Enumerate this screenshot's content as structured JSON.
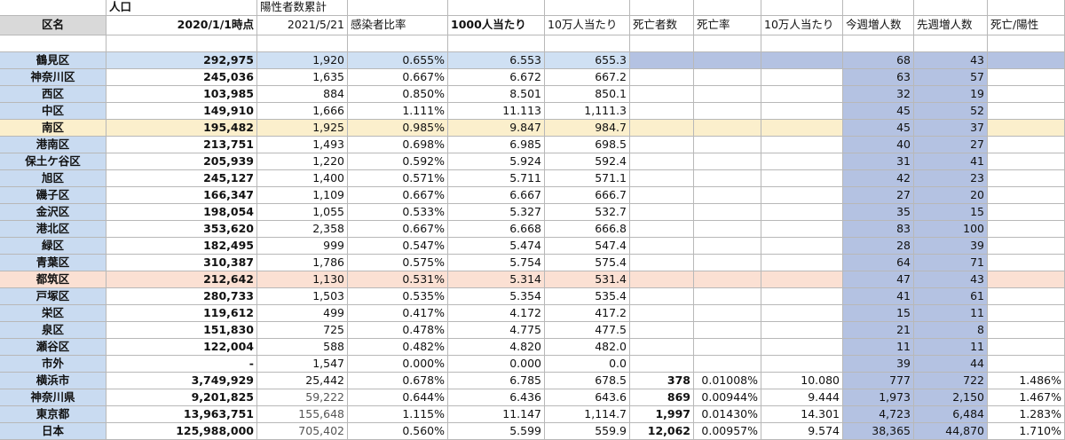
{
  "header": {
    "top": [
      "",
      "人口",
      "陽性者数累計",
      "",
      "",
      "",
      "",
      "",
      "",
      "",
      "",
      ""
    ],
    "main": [
      "区名",
      "2020/1/1時点",
      "2021/5/21",
      "感染者比率",
      "1000人当たり",
      "10万人当たり",
      "死亡者数",
      "死亡率",
      "10万人当たり",
      "今週増人数",
      "先週増人数",
      "死亡/陽性"
    ]
  },
  "rows": [
    {
      "cells": [
        "鶴見区",
        "292,975",
        "1,920",
        "0.655%",
        "6.553",
        "655.3",
        "",
        "",
        "",
        "68",
        "43",
        ""
      ]
    },
    {
      "cells": [
        "神奈川区",
        "245,036",
        "1,635",
        "0.667%",
        "6.672",
        "667.2",
        "",
        "",
        "",
        "63",
        "57",
        ""
      ]
    },
    {
      "cells": [
        "西区",
        "103,985",
        "884",
        "0.850%",
        "8.501",
        "850.1",
        "",
        "",
        "",
        "32",
        "19",
        ""
      ]
    },
    {
      "cells": [
        "中区",
        "149,910",
        "1,666",
        "1.111%",
        "11.113",
        "1,111.3",
        "",
        "",
        "",
        "45",
        "52",
        ""
      ]
    },
    {
      "cells": [
        "南区",
        "195,482",
        "1,925",
        "0.985%",
        "9.847",
        "984.7",
        "",
        "",
        "",
        "45",
        "37",
        ""
      ]
    },
    {
      "cells": [
        "港南区",
        "213,751",
        "1,493",
        "0.698%",
        "6.985",
        "698.5",
        "",
        "",
        "",
        "40",
        "27",
        ""
      ]
    },
    {
      "cells": [
        "保土ケ谷区",
        "205,939",
        "1,220",
        "0.592%",
        "5.924",
        "592.4",
        "",
        "",
        "",
        "31",
        "41",
        ""
      ]
    },
    {
      "cells": [
        "旭区",
        "245,127",
        "1,400",
        "0.571%",
        "5.711",
        "571.1",
        "",
        "",
        "",
        "42",
        "23",
        ""
      ]
    },
    {
      "cells": [
        "磯子区",
        "166,347",
        "1,109",
        "0.667%",
        "6.667",
        "666.7",
        "",
        "",
        "",
        "27",
        "20",
        ""
      ]
    },
    {
      "cells": [
        "金沢区",
        "198,054",
        "1,055",
        "0.533%",
        "5.327",
        "532.7",
        "",
        "",
        "",
        "35",
        "15",
        ""
      ]
    },
    {
      "cells": [
        "港北区",
        "353,620",
        "2,358",
        "0.667%",
        "6.668",
        "666.8",
        "",
        "",
        "",
        "83",
        "100",
        ""
      ]
    },
    {
      "cells": [
        "緑区",
        "182,495",
        "999",
        "0.547%",
        "5.474",
        "547.4",
        "",
        "",
        "",
        "28",
        "39",
        ""
      ]
    },
    {
      "cells": [
        "青葉区",
        "310,387",
        "1,786",
        "0.575%",
        "5.754",
        "575.4",
        "",
        "",
        "",
        "64",
        "71",
        ""
      ]
    },
    {
      "cells": [
        "都筑区",
        "212,642",
        "1,130",
        "0.531%",
        "5.314",
        "531.4",
        "",
        "",
        "",
        "47",
        "43",
        ""
      ]
    },
    {
      "cells": [
        "戸塚区",
        "280,733",
        "1,503",
        "0.535%",
        "5.354",
        "535.4",
        "",
        "",
        "",
        "41",
        "61",
        ""
      ]
    },
    {
      "cells": [
        "栄区",
        "119,612",
        "499",
        "0.417%",
        "4.172",
        "417.2",
        "",
        "",
        "",
        "15",
        "11",
        ""
      ]
    },
    {
      "cells": [
        "泉区",
        "151,830",
        "725",
        "0.478%",
        "4.775",
        "477.5",
        "",
        "",
        "",
        "21",
        "8",
        ""
      ]
    },
    {
      "cells": [
        "瀬谷区",
        "122,004",
        "588",
        "0.482%",
        "4.820",
        "482.0",
        "",
        "",
        "",
        "11",
        "11",
        ""
      ]
    },
    {
      "cells": [
        "市外",
        "-",
        "1,547",
        "0.000%",
        "0.000",
        "0.0",
        "",
        "",
        "",
        "39",
        "44",
        ""
      ]
    },
    {
      "cells": [
        "横浜市",
        "3,749,929",
        "25,442",
        "0.678%",
        "6.785",
        "678.5",
        "378",
        "0.01008%",
        "10.080",
        "777",
        "722",
        "1.486%"
      ]
    },
    {
      "cells": [
        "神奈川県",
        "9,201,825",
        "59,222",
        "0.644%",
        "6.436",
        "643.6",
        "869",
        "0.00944%",
        "9.444",
        "1,973",
        "2,150",
        "1.467%"
      ]
    },
    {
      "cells": [
        "東京都",
        "13,963,751",
        "155,648",
        "1.115%",
        "11.147",
        "1,114.7",
        "1,997",
        "0.01430%",
        "14.301",
        "4,723",
        "6,484",
        "1.283%"
      ]
    },
    {
      "cells": [
        "日本",
        "125,988,000",
        "705,402",
        "0.560%",
        "5.599",
        "559.9",
        "12,062",
        "0.00957%",
        "9.574",
        "38,365",
        "44,870",
        "1.710%"
      ]
    }
  ],
  "colors": {
    "grid": "#b8b8b8",
    "header_gray": "#d9d9d9",
    "name_col_blue": "#c9dbf1",
    "row_blue": "#cfe0f3",
    "week_cols_blue": "#b4c2e2",
    "row_yellow": "#fbefcc",
    "row_salmon": "#fbe0d3",
    "text": "#111111",
    "muted_text": "#555555"
  }
}
